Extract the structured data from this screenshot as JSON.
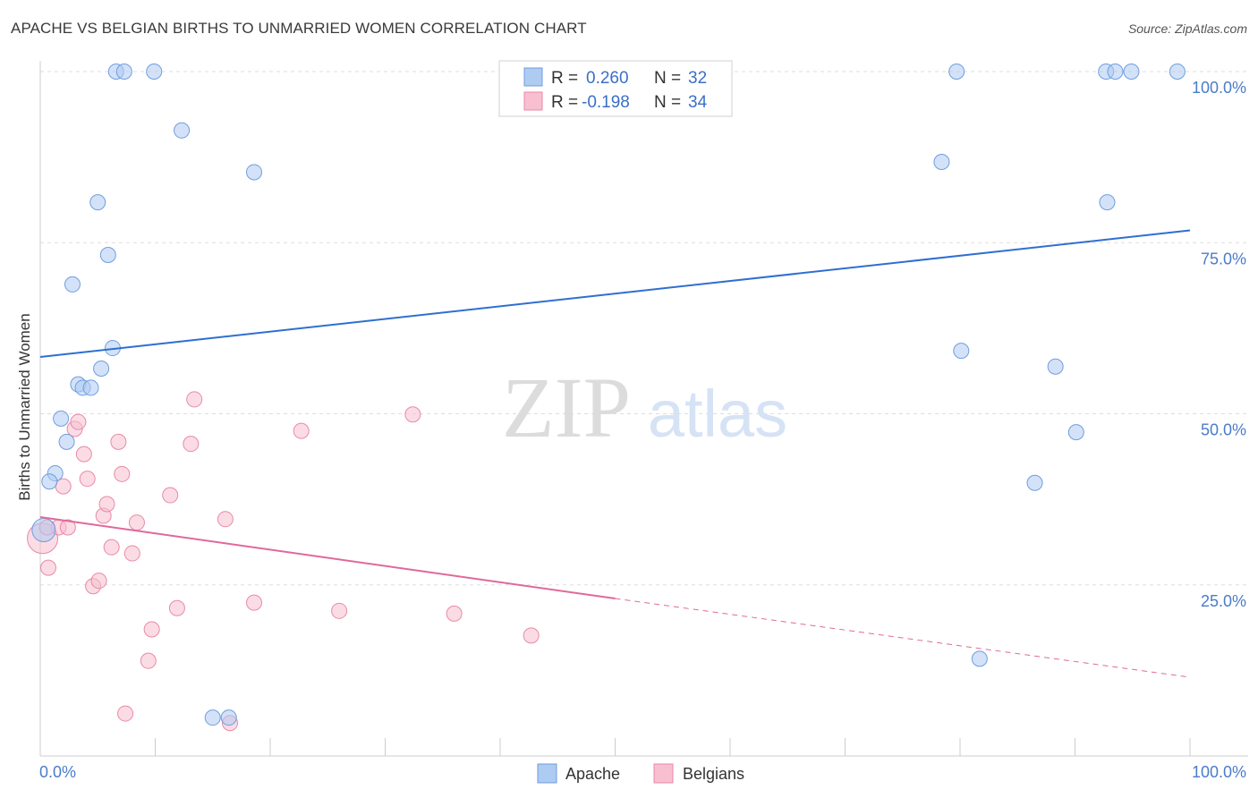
{
  "title": "APACHE VS BELGIAN BIRTHS TO UNMARRIED WOMEN CORRELATION CHART",
  "source": "Source: ZipAtlas.com",
  "watermark": {
    "zip": "ZIP",
    "atlas": "atlas"
  },
  "legend": {
    "apache": {
      "r_label": "R =",
      "r_value": "0.260",
      "n_label": "N =",
      "n_value": "32"
    },
    "belgians": {
      "r_label": "R =",
      "r_value": "-0.198",
      "n_label": "N =",
      "n_value": "34"
    }
  },
  "bottom_legend": {
    "apache": "Apache",
    "belgians": "Belgians"
  },
  "colors": {
    "apache_fill": "#aecbf2",
    "apache_stroke": "#6f9edf",
    "apache_line": "#2f6fd1",
    "belgians_fill": "#f7bfd0",
    "belgians_stroke": "#e88aa8",
    "belgians_line": "#e0699a",
    "tick": "#4a7cc9",
    "grid": "#dddddd"
  },
  "chart_data": {
    "type": "scatter",
    "title": "APACHE VS BELGIAN BIRTHS TO UNMARRIED WOMEN CORRELATION CHART",
    "xlabel": "",
    "ylabel": "Births to Unmarried Women",
    "xlim": [
      0,
      100
    ],
    "ylim": [
      0,
      102
    ],
    "x_tick_labels": [
      "0.0%",
      "100.0%"
    ],
    "y_ticks": [
      25,
      50,
      75,
      100
    ],
    "y_tick_labels": [
      "25.0%",
      "50.0%",
      "75.0%",
      "100.0%"
    ],
    "grid": "horizontal dashed",
    "legend_position": "top-center",
    "series": [
      {
        "name": "Apache",
        "r": 0.26,
        "n": 32,
        "trend": {
          "x": [
            0,
            100
          ],
          "y": [
            58.3,
            76.8
          ]
        },
        "points": [
          [
            6.6,
            100
          ],
          [
            7.3,
            100
          ],
          [
            9.9,
            100
          ],
          [
            12.3,
            91.4
          ],
          [
            18.6,
            85.3
          ],
          [
            5.0,
            80.9
          ],
          [
            5.9,
            73.2
          ],
          [
            2.8,
            68.9
          ],
          [
            6.3,
            59.6
          ],
          [
            5.3,
            56.6
          ],
          [
            3.3,
            54.3
          ],
          [
            3.7,
            53.8
          ],
          [
            4.4,
            53.8
          ],
          [
            1.8,
            49.3
          ],
          [
            2.3,
            45.9
          ],
          [
            1.3,
            41.3
          ],
          [
            0.8,
            40.1
          ],
          [
            0.3,
            33.0
          ],
          [
            15.0,
            5.6
          ],
          [
            16.4,
            5.6
          ],
          [
            79.7,
            100
          ],
          [
            92.7,
            100
          ],
          [
            93.5,
            100
          ],
          [
            94.9,
            100
          ],
          [
            98.9,
            100
          ],
          [
            78.4,
            86.8
          ],
          [
            92.8,
            80.9
          ],
          [
            80.1,
            59.2
          ],
          [
            88.3,
            56.9
          ],
          [
            90.1,
            47.3
          ],
          [
            86.5,
            39.9
          ],
          [
            81.7,
            14.2
          ]
        ]
      },
      {
        "name": "Belgians",
        "r": -0.198,
        "n": 34,
        "trend": {
          "x": [
            0,
            50
          ],
          "y": [
            34.9,
            23.0
          ]
        },
        "trend_dashed": {
          "x": [
            50,
            100
          ],
          "y": [
            23.0,
            11.5
          ]
        },
        "points": [
          [
            0.2,
            31.8
          ],
          [
            0.7,
            27.5
          ],
          [
            1.6,
            33.4
          ],
          [
            2.4,
            33.4
          ],
          [
            2.0,
            39.4
          ],
          [
            3.0,
            47.8
          ],
          [
            3.3,
            48.8
          ],
          [
            3.8,
            44.1
          ],
          [
            4.1,
            40.5
          ],
          [
            4.6,
            24.8
          ],
          [
            5.1,
            25.6
          ],
          [
            5.5,
            35.1
          ],
          [
            5.8,
            36.8
          ],
          [
            6.2,
            30.5
          ],
          [
            6.8,
            45.9
          ],
          [
            7.1,
            41.2
          ],
          [
            7.4,
            6.2
          ],
          [
            8.0,
            29.6
          ],
          [
            8.4,
            34.1
          ],
          [
            9.4,
            13.9
          ],
          [
            9.7,
            18.5
          ],
          [
            11.3,
            38.1
          ],
          [
            11.9,
            21.6
          ],
          [
            13.1,
            45.6
          ],
          [
            13.4,
            52.1
          ],
          [
            16.1,
            34.6
          ],
          [
            16.5,
            4.8
          ],
          [
            18.6,
            22.4
          ],
          [
            22.7,
            47.5
          ],
          [
            26.0,
            21.2
          ],
          [
            32.4,
            49.9
          ],
          [
            36.0,
            20.8
          ],
          [
            42.7,
            17.6
          ],
          [
            0.6,
            33.4
          ]
        ]
      }
    ]
  }
}
